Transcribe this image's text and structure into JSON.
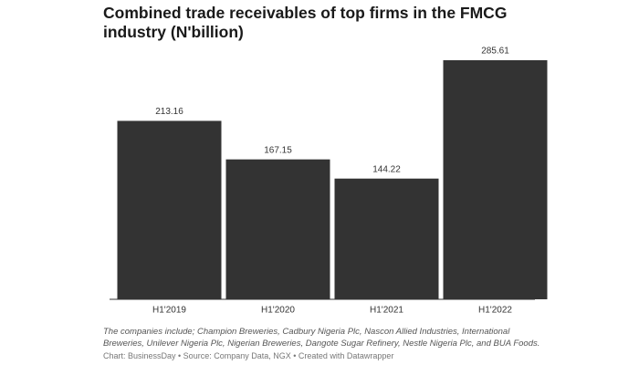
{
  "chart_data": {
    "type": "bar",
    "title": "Combined trade receivables of top firms in the FMCG industry (N'billion)",
    "categories": [
      "H1'2019",
      "H1'2020",
      "H1'2021",
      "H1'2022"
    ],
    "values": [
      213.16,
      167.15,
      144.22,
      285.61
    ],
    "color": "#333333",
    "note": "The companies include; Champion Breweries, Cadbury Nigeria Plc, Nascon Allied Industries, International Breweries, Unilever Nigeria Plc, Nigerian Breweries, Dangote Sugar Refinery, Nestle Nigeria Plc, and BUA Foods.",
    "source": "Chart: BusinessDay • Source: Company Data, NGX • Created with Datawrapper"
  }
}
